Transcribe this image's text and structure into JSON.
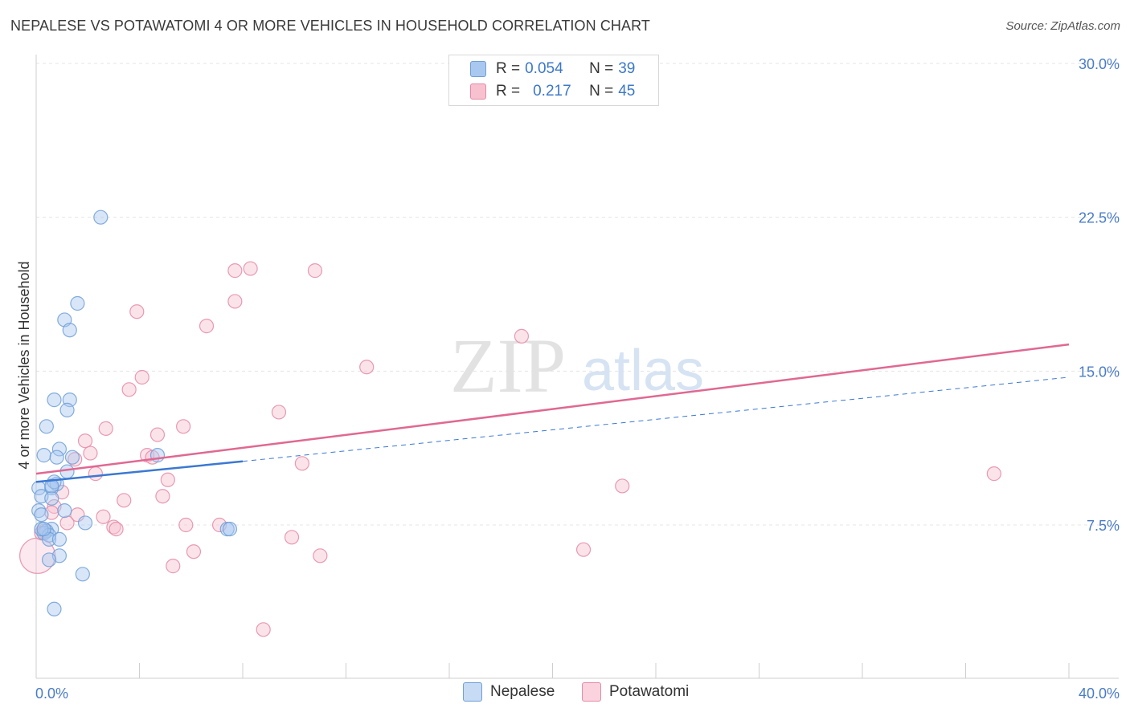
{
  "title": "NEPALESE VS POTAWATOMI 4 OR MORE VEHICLES IN HOUSEHOLD CORRELATION CHART",
  "source": "Source: ZipAtlas.com",
  "watermark": {
    "zip": "ZIP",
    "atlas": "atlas"
  },
  "legend": {
    "rows": [
      {
        "r_label": "R = ",
        "r_value": "0.054",
        "n_label": "N = ",
        "n_value": "39",
        "color": "#a9c8f0",
        "border": "#6f9fd8"
      },
      {
        "r_label": "R = ",
        "r_value": "0.217",
        "n_label": "N = ",
        "n_value": "45",
        "color": "#f7c1d0",
        "border": "#e58aa6"
      }
    ]
  },
  "bottom_legend": [
    {
      "label": "Nepalese",
      "color": "#c7dbf5",
      "border": "#6f9fd8"
    },
    {
      "label": "Potawatomi",
      "color": "#fad3df",
      "border": "#e58aa6"
    }
  ],
  "chart_data": {
    "type": "scatter",
    "title": "NEPALESE VS POTAWATOMI 4 OR MORE VEHICLES IN HOUSEHOLD CORRELATION CHART",
    "xlabel": "",
    "ylabel": "4 or more Vehicles in Household",
    "xlim": [
      0,
      40
    ],
    "ylim": [
      0,
      31.5
    ],
    "x_tick_labels": [
      "0.0%",
      "40.0%"
    ],
    "y_ticks": [
      7.5,
      15.0,
      22.5,
      30.0
    ],
    "y_tick_labels": [
      "7.5%",
      "15.0%",
      "22.5%",
      "30.0%"
    ],
    "grid": true,
    "series": [
      {
        "name": "Nepalese",
        "color": "#6f9fd8",
        "fill": "#a9c8f0",
        "points": [
          [
            2.5,
            22.5
          ],
          [
            1.6,
            18.3
          ],
          [
            1.1,
            17.5
          ],
          [
            1.3,
            17.0
          ],
          [
            0.7,
            13.6
          ],
          [
            1.3,
            13.6
          ],
          [
            1.2,
            13.1
          ],
          [
            0.4,
            12.3
          ],
          [
            0.9,
            11.2
          ],
          [
            0.3,
            10.9
          ],
          [
            0.8,
            10.8
          ],
          [
            1.4,
            10.8
          ],
          [
            4.7,
            10.9
          ],
          [
            1.2,
            10.1
          ],
          [
            0.1,
            9.3
          ],
          [
            0.6,
            9.3
          ],
          [
            0.8,
            9.5
          ],
          [
            0.7,
            9.6
          ],
          [
            0.2,
            8.9
          ],
          [
            0.6,
            8.8
          ],
          [
            0.1,
            8.2
          ],
          [
            0.2,
            8.0
          ],
          [
            1.1,
            8.2
          ],
          [
            0.6,
            7.3
          ],
          [
            0.4,
            7.2
          ],
          [
            0.3,
            7.1
          ],
          [
            0.5,
            7.0
          ],
          [
            1.9,
            7.6
          ],
          [
            7.4,
            7.3
          ],
          [
            7.5,
            7.3
          ],
          [
            0.5,
            6.8
          ],
          [
            0.9,
            6.8
          ],
          [
            0.9,
            6.0
          ],
          [
            0.5,
            5.8
          ],
          [
            1.8,
            5.1
          ],
          [
            0.7,
            3.4
          ],
          [
            0.2,
            7.3
          ],
          [
            0.6,
            9.4
          ],
          [
            0.3,
            7.3
          ]
        ]
      },
      {
        "name": "Potawatomi",
        "color": "#e58aa6",
        "fill": "#f7c1d0",
        "points": [
          [
            0.05,
            6.0
          ],
          [
            7.7,
            19.9
          ],
          [
            8.3,
            20.0
          ],
          [
            10.8,
            19.9
          ],
          [
            7.7,
            18.4
          ],
          [
            3.9,
            17.9
          ],
          [
            6.6,
            17.2
          ],
          [
            18.8,
            16.7
          ],
          [
            4.1,
            14.7
          ],
          [
            3.6,
            14.1
          ],
          [
            12.8,
            15.2
          ],
          [
            9.4,
            13.0
          ],
          [
            5.7,
            12.3
          ],
          [
            2.7,
            12.2
          ],
          [
            4.7,
            11.9
          ],
          [
            1.9,
            11.6
          ],
          [
            2.1,
            11.0
          ],
          [
            4.3,
            10.9
          ],
          [
            4.5,
            10.8
          ],
          [
            1.5,
            10.7
          ],
          [
            10.3,
            10.5
          ],
          [
            2.3,
            10.0
          ],
          [
            5.1,
            9.7
          ],
          [
            1.0,
            9.1
          ],
          [
            22.7,
            9.4
          ],
          [
            37.1,
            10.0
          ],
          [
            4.9,
            8.9
          ],
          [
            3.4,
            8.7
          ],
          [
            0.7,
            8.4
          ],
          [
            0.6,
            8.1
          ],
          [
            1.6,
            8.0
          ],
          [
            2.6,
            7.9
          ],
          [
            1.2,
            7.6
          ],
          [
            5.8,
            7.5
          ],
          [
            7.1,
            7.5
          ],
          [
            3.0,
            7.4
          ],
          [
            3.1,
            7.3
          ],
          [
            0.3,
            7.2
          ],
          [
            0.2,
            7.1
          ],
          [
            9.9,
            6.9
          ],
          [
            6.1,
            6.2
          ],
          [
            21.2,
            6.3
          ],
          [
            11.0,
            6.0
          ],
          [
            5.3,
            5.5
          ],
          [
            8.8,
            2.4
          ]
        ]
      }
    ],
    "trend_lines": [
      {
        "series": "Nepalese",
        "x_start": 0,
        "y_start": 9.6,
        "x_end": 8.0,
        "y_end": 10.6,
        "dashed_to": 40,
        "dashed_y_end": 14.7,
        "color": "#3b78d2"
      },
      {
        "series": "Potawatomi",
        "x_start": 0,
        "y_start": 10.0,
        "x_end": 40,
        "y_end": 16.3,
        "color": "#e06892"
      }
    ]
  }
}
